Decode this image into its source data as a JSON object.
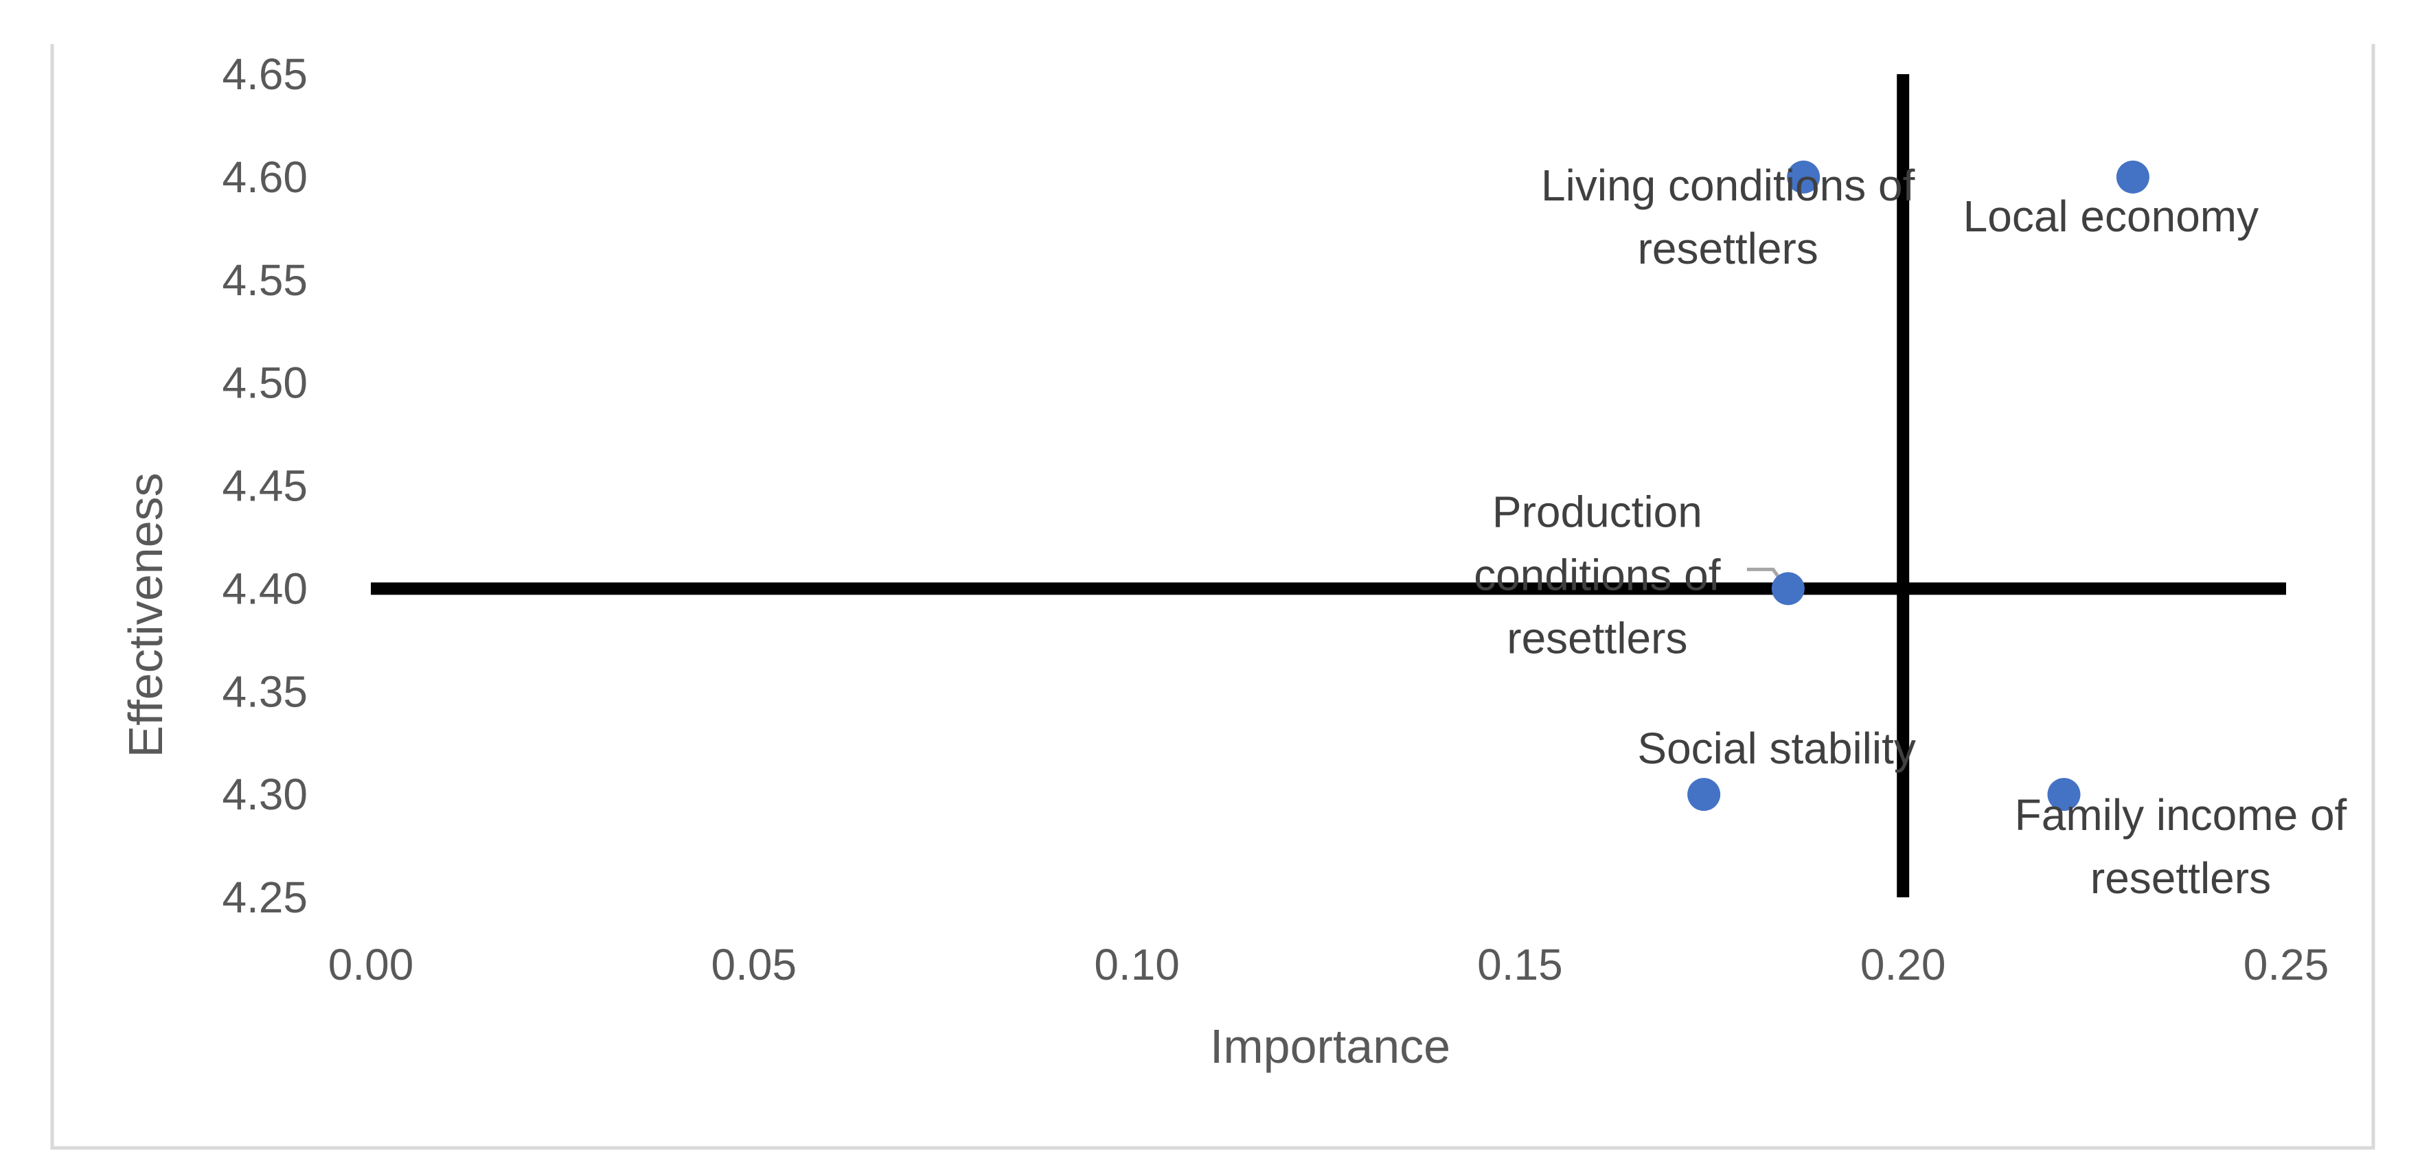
{
  "chart_data": {
    "type": "scatter",
    "title": "",
    "xlabel": "Importance",
    "ylabel": "Effectiveness",
    "xlim": [
      0.0,
      0.25
    ],
    "ylim": [
      4.25,
      4.65
    ],
    "xticks": [
      "0.00",
      "0.05",
      "0.10",
      "0.15",
      "0.20",
      "0.25"
    ],
    "yticks": [
      "4.25",
      "4.30",
      "4.35",
      "4.40",
      "4.45",
      "4.50",
      "4.55",
      "4.60",
      "4.65"
    ],
    "grid": false,
    "legend": "none",
    "quadrant_lines": {
      "x": 0.2,
      "y": 4.4
    },
    "points": [
      {
        "label_lines": [
          "Living conditions of",
          "resettlers"
        ],
        "x": 0.187,
        "y": 4.6
      },
      {
        "label_lines": [
          "Local economy"
        ],
        "x": 0.23,
        "y": 4.6
      },
      {
        "label_lines": [
          "Production",
          "conditions of",
          "resettlers"
        ],
        "x": 0.185,
        "y": 4.4
      },
      {
        "label_lines": [
          "Social stability"
        ],
        "x": 0.174,
        "y": 4.3
      },
      {
        "label_lines": [
          "Family income of",
          "resettlers"
        ],
        "x": 0.221,
        "y": 4.3
      }
    ],
    "colors": {
      "marker": "#4472C4",
      "quadrant_line": "#000000",
      "text": "#595959",
      "frame": "#D9D9D9"
    }
  }
}
